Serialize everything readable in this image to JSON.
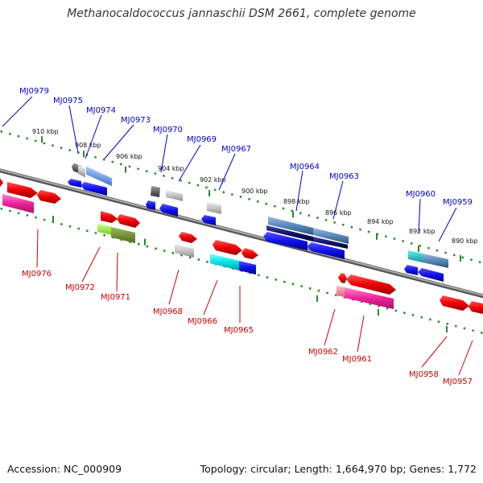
{
  "title": "Methanocaldococcus jannaschii DSM 2661, complete genome",
  "footer": {
    "accession": "Accession: NC_000909",
    "topology": "Topology: circular; Length: 1,664,970 bp; Genes: 1,772"
  },
  "colors": {
    "plus_label": "#0000cc",
    "minus_label": "#cc0000",
    "backbone": "#888888",
    "ruler": "#2a8a2a"
  },
  "scale_ticks": [
    "910 kbp",
    "908 kbp",
    "906 kbp",
    "904 kbp",
    "902 kbp",
    "900 kbp",
    "898 kbp",
    "896 kbp",
    "894 kbp",
    "892 kbp",
    "890 kbp"
  ],
  "genes_plus": [
    "MJ0979",
    "MJ0975",
    "MJ0974",
    "MJ0973",
    "MJ0970",
    "MJ0969",
    "MJ0967",
    "MJ0964",
    "MJ0963",
    "MJ0960",
    "MJ0959"
  ],
  "genes_minus": [
    "MJ0976",
    "MJ0972",
    "MJ0971",
    "MJ0968",
    "MJ0966",
    "MJ0965",
    "MJ0962",
    "MJ0961",
    "MJ0958",
    "MJ0957"
  ]
}
